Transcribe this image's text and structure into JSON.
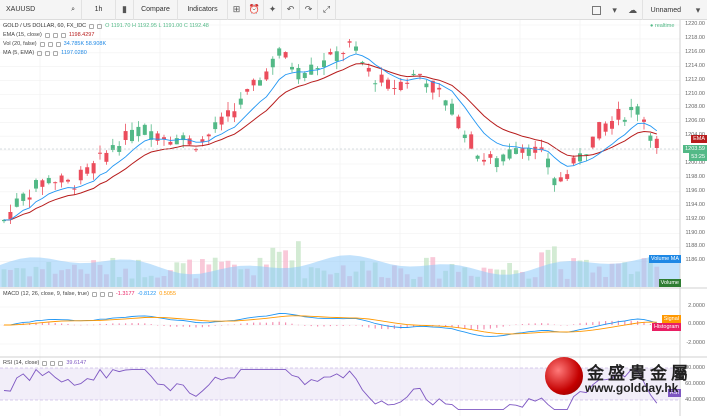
{
  "toolbar": {
    "symbol": "XAUUSD",
    "interval": "1h",
    "compare_label": "Compare",
    "indicators_label": "Indicators",
    "layout_name": "Unnamed"
  },
  "main": {
    "title": "GOLD / US DOLLAR, 60, FX_IDC",
    "ohlc": "O 1191.70  H 1192.95  L 1191.00  C 1192.48",
    "ema_label": "EMA (15, close)",
    "ema_value": "1198.4297",
    "vol_label": "Vol (20, false)",
    "vol_value": "34.785K  58.908K",
    "ma_label": "MA (5, EMA)",
    "ma_value": "1197.0280",
    "realtime_label": "realtime",
    "price_axis": [
      "1220.00",
      "1218.00",
      "1216.00",
      "1214.00",
      "1212.00",
      "1210.00",
      "1208.00",
      "1206.00",
      "1204.00",
      "1202.00",
      "1200.00",
      "1198.00",
      "1196.00",
      "1194.00",
      "1192.00",
      "1190.00",
      "1188.00",
      "1186.00"
    ],
    "last_price": "1203.59",
    "last_price_sub": "53:25",
    "ema_tag": "EMA",
    "volume_tag": "Volume MA",
    "volume_tag2": "Volume"
  },
  "macd": {
    "label": "MACD (12, 26, close, 9, false, true)",
    "values": [
      "-1.3177",
      "-0.8122",
      "0.5055"
    ],
    "axis": [
      "2.0000",
      "0.0000",
      "-2.0000"
    ],
    "signal_tag": "Signal",
    "histogram_tag": "Histogram"
  },
  "rsi": {
    "label": "RSI (14, close)",
    "value": "39.6147",
    "axis": [
      "80.0000",
      "60.0000",
      "40.0000"
    ],
    "tag": "RSI"
  },
  "watermark": {
    "cn": "金盛貴金屬",
    "url": "www.goldday.hk"
  },
  "colors": {
    "up": "#53b987",
    "down": "#eb4d5c",
    "ema": "#b71c1c",
    "ma": "#2196f3",
    "volume_area": "#90caf9",
    "macd_line": "#2196f3",
    "signal_line": "#ff9800",
    "rsi_line": "#7e57c2",
    "rsi_band": "#ede7f6"
  }
}
